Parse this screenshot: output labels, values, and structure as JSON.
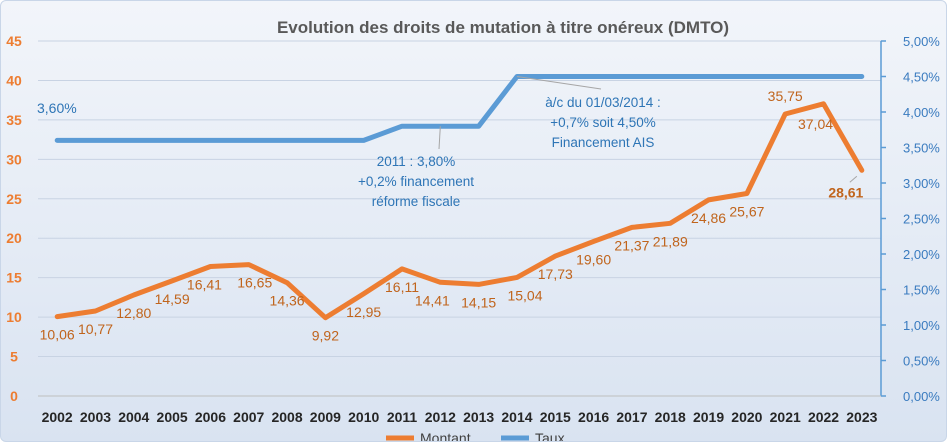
{
  "chart_data": {
    "type": "line",
    "title": "Evolution des droits de mutation à titre onéreux (DMTO)",
    "categories": [
      "2002",
      "2003",
      "2004",
      "2005",
      "2006",
      "2007",
      "2008",
      "2009",
      "2010",
      "2011",
      "2012",
      "2013",
      "2014",
      "2015",
      "2016",
      "2017",
      "2018",
      "2019",
      "2020",
      "2021",
      "2022",
      "2023"
    ],
    "series": [
      {
        "name": "Montant",
        "axis": "left",
        "color": "#ed7d31",
        "values": [
          10.06,
          10.77,
          12.8,
          14.59,
          16.41,
          16.65,
          14.36,
          9.92,
          12.95,
          16.11,
          14.41,
          14.15,
          15.04,
          17.73,
          19.6,
          21.37,
          21.89,
          24.86,
          25.67,
          35.75,
          37.04,
          28.61
        ],
        "labels": [
          "10,06",
          "10,77",
          "12,80",
          "14,59",
          "16,41",
          "16,65",
          "14,36",
          "9,92",
          "12,95",
          "16,11",
          "14,41",
          "14,15",
          "15,04",
          "17,73",
          "19,60",
          "21,37",
          "21,89",
          "24,86",
          "25,67",
          "35,75",
          "37,04",
          "28,61"
        ]
      },
      {
        "name": "Taux",
        "axis": "right",
        "color": "#5b9bd5",
        "values": [
          3.6,
          3.6,
          3.6,
          3.6,
          3.6,
          3.6,
          3.6,
          3.6,
          3.6,
          3.8,
          3.8,
          3.8,
          4.5,
          4.5,
          4.5,
          4.5,
          4.5,
          4.5,
          4.5,
          4.5,
          4.5,
          4.5
        ]
      }
    ],
    "left_axis": {
      "ylim": [
        0,
        45
      ],
      "ticks": [
        "0",
        "5",
        "10",
        "15",
        "20",
        "25",
        "30",
        "35",
        "40",
        "45"
      ]
    },
    "right_axis": {
      "ylim": [
        0,
        5
      ],
      "ticks": [
        "0,00%",
        "0,50%",
        "1,00%",
        "1,50%",
        "2,00%",
        "2,50%",
        "3,00%",
        "3,50%",
        "4,00%",
        "4,50%",
        "5,00%"
      ]
    },
    "grid": true,
    "legend_position": "bottom",
    "annotations": {
      "taux_start": "3,60%",
      "reform_2011": [
        "2011 : 3,80%",
        "+0,2% financement",
        "réforme fiscale"
      ],
      "reform_2014": [
        "à/c du 01/03/2014 :",
        "+0,7% soit 4,50%",
        "Financement AIS"
      ]
    }
  }
}
